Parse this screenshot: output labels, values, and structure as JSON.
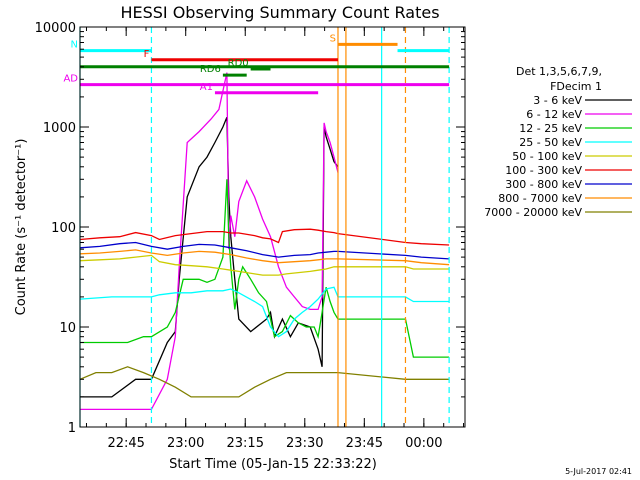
{
  "chart_data": {
    "type": "line",
    "title": "HESSI Observing Summary Count Rates",
    "xlabel": "Start Time (05-Jan-15 22:33:22)",
    "ylabel": "Count Rate (s⁻¹ detector⁻¹)",
    "ylim": [
      1,
      10000
    ],
    "yscale": "log",
    "xlim_minutes": [
      0,
      97
    ],
    "x_ticks": [
      "22:45",
      "23:00",
      "23:15",
      "23:30",
      "23:45",
      "00:00"
    ],
    "y_ticks": [
      "1",
      "10",
      "100",
      "1000",
      "10000"
    ],
    "grid": false,
    "legend_position": "right",
    "legend_header": [
      "Det 1,3,5,6,7,9,",
      "FDecim 1"
    ],
    "footer": "5-Jul-2017 02:41",
    "flags": [
      {
        "label": "N",
        "color": "#00ffff",
        "y": 5800,
        "segments": [
          [
            0,
            18
          ],
          [
            80,
            93
          ]
        ]
      },
      {
        "label": "S",
        "color": "#ff8c00",
        "y": 6700,
        "segments": [
          [
            65,
            80
          ]
        ]
      },
      {
        "label": "F",
        "color": "#ee0000",
        "y": 4700,
        "segments": [
          [
            18,
            65
          ]
        ]
      },
      {
        "label": "",
        "color": "#008000",
        "y": 4000,
        "segments": [
          [
            0,
            93
          ]
        ]
      },
      {
        "label": "RD0",
        "color": "#008000",
        "y": 3800,
        "segments": [
          [
            43,
            48
          ]
        ]
      },
      {
        "label": "RD6",
        "color": "#008000",
        "y": 3300,
        "segments": [
          [
            36,
            42
          ]
        ]
      },
      {
        "label": "AD",
        "color": "#ee00ee",
        "y": 2650,
        "segments": [
          [
            0,
            93
          ]
        ]
      },
      {
        "label": "A1",
        "color": "#ee00ee",
        "y": 2200,
        "segments": [
          [
            34,
            60
          ]
        ]
      }
    ],
    "vlines": [
      {
        "x": 0,
        "color": "#00ffff",
        "style": "solid"
      },
      {
        "x": 18,
        "color": "#00ffff",
        "style": "dashed"
      },
      {
        "x": 65,
        "color": "#ff8c00",
        "style": "solid"
      },
      {
        "x": 67,
        "color": "#ff8c00",
        "style": "solid"
      },
      {
        "x": 76,
        "color": "#00ffff",
        "style": "solid"
      },
      {
        "x": 82,
        "color": "#ff8c00",
        "style": "dashed"
      },
      {
        "x": 93,
        "color": "#00ffff",
        "style": "dashed"
      }
    ],
    "series": [
      {
        "name": "3 - 6 keV",
        "color": "#000000",
        "points": [
          [
            0,
            2
          ],
          [
            8,
            2
          ],
          [
            14,
            3
          ],
          [
            18,
            3
          ],
          [
            22,
            7
          ],
          [
            24,
            9
          ],
          [
            25,
            30
          ],
          [
            27,
            200
          ],
          [
            30,
            400
          ],
          [
            32,
            500
          ],
          [
            34,
            700
          ],
          [
            36,
            1000
          ],
          [
            37,
            1250
          ],
          [
            37.5,
            200
          ],
          [
            38,
            80
          ],
          [
            39,
            30
          ],
          [
            40,
            12
          ],
          [
            43,
            9
          ],
          [
            47,
            12
          ],
          [
            48,
            14
          ],
          [
            49,
            8
          ],
          [
            51,
            12
          ],
          [
            53,
            8
          ],
          [
            55,
            11
          ],
          [
            58,
            10
          ],
          [
            60,
            6
          ],
          [
            61,
            4
          ],
          [
            61.5,
            1000
          ],
          [
            62,
            800
          ],
          [
            63,
            600
          ],
          [
            64,
            450
          ],
          [
            65,
            400
          ]
        ]
      },
      {
        "name": "6 - 12 keV",
        "color": "#ee00ee",
        "points": [
          [
            0,
            1.5
          ],
          [
            10,
            1.5
          ],
          [
            16,
            1.5
          ],
          [
            18,
            1.5
          ],
          [
            22,
            3
          ],
          [
            24,
            8
          ],
          [
            25,
            40
          ],
          [
            27,
            700
          ],
          [
            30,
            900
          ],
          [
            33,
            1200
          ],
          [
            35,
            1500
          ],
          [
            37,
            3500
          ],
          [
            37.5,
            60
          ],
          [
            38,
            130
          ],
          [
            39,
            80
          ],
          [
            40,
            180
          ],
          [
            42,
            290
          ],
          [
            44,
            200
          ],
          [
            46,
            120
          ],
          [
            48,
            80
          ],
          [
            50,
            40
          ],
          [
            52,
            25
          ],
          [
            54,
            20
          ],
          [
            56,
            16
          ],
          [
            58,
            15
          ],
          [
            60,
            15
          ],
          [
            61,
            20
          ],
          [
            61.5,
            1100
          ],
          [
            62,
            900
          ],
          [
            63,
            700
          ],
          [
            64,
            500
          ],
          [
            65,
            350
          ]
        ]
      },
      {
        "name": "12 - 25 keV",
        "color": "#00cc00",
        "points": [
          [
            0,
            7
          ],
          [
            8,
            7
          ],
          [
            12,
            7
          ],
          [
            16,
            8
          ],
          [
            18,
            8
          ],
          [
            22,
            10
          ],
          [
            24,
            14
          ],
          [
            26,
            30
          ],
          [
            30,
            30
          ],
          [
            32,
            28
          ],
          [
            34,
            30
          ],
          [
            36,
            50
          ],
          [
            37,
            300
          ],
          [
            37.5,
            80
          ],
          [
            38,
            40
          ],
          [
            39,
            15
          ],
          [
            40,
            30
          ],
          [
            41,
            40
          ],
          [
            43,
            30
          ],
          [
            45,
            22
          ],
          [
            47,
            18
          ],
          [
            48,
            12
          ],
          [
            49,
            8
          ],
          [
            51,
            9
          ],
          [
            53,
            13
          ],
          [
            55,
            11
          ],
          [
            57,
            10
          ],
          [
            59,
            10
          ],
          [
            60,
            8
          ],
          [
            61,
            14
          ],
          [
            62,
            25
          ],
          [
            63,
            18
          ],
          [
            64,
            14
          ],
          [
            65,
            12
          ],
          [
            82,
            12
          ],
          [
            84,
            5
          ],
          [
            93,
            5
          ]
        ]
      },
      {
        "name": "25 - 50 keV",
        "color": "#00ffff",
        "points": [
          [
            0,
            19
          ],
          [
            8,
            20
          ],
          [
            14,
            20
          ],
          [
            18,
            20
          ],
          [
            20,
            21
          ],
          [
            24,
            22
          ],
          [
            28,
            22
          ],
          [
            32,
            23
          ],
          [
            36,
            23
          ],
          [
            38,
            24
          ],
          [
            40,
            22
          ],
          [
            44,
            18
          ],
          [
            46,
            16
          ],
          [
            48,
            10
          ],
          [
            50,
            8
          ],
          [
            52,
            9
          ],
          [
            54,
            12
          ],
          [
            56,
            14
          ],
          [
            58,
            16
          ],
          [
            60,
            19
          ],
          [
            62,
            24
          ],
          [
            64,
            25
          ],
          [
            65,
            20
          ],
          [
            82,
            20
          ],
          [
            84,
            18
          ],
          [
            93,
            18
          ]
        ]
      },
      {
        "name": "50 - 100 keV",
        "color": "#cccc00",
        "points": [
          [
            0,
            46
          ],
          [
            5,
            47
          ],
          [
            10,
            48
          ],
          [
            14,
            50
          ],
          [
            18,
            52
          ],
          [
            20,
            45
          ],
          [
            24,
            42
          ],
          [
            28,
            41
          ],
          [
            32,
            40
          ],
          [
            36,
            38
          ],
          [
            38,
            37
          ],
          [
            40,
            36
          ],
          [
            44,
            34
          ],
          [
            46,
            33
          ],
          [
            48,
            33
          ],
          [
            50,
            33
          ],
          [
            52,
            34
          ],
          [
            55,
            35
          ],
          [
            58,
            36
          ],
          [
            60,
            37
          ],
          [
            62,
            38
          ],
          [
            64,
            40
          ],
          [
            65,
            40
          ],
          [
            82,
            40
          ],
          [
            84,
            38
          ],
          [
            93,
            38
          ]
        ]
      },
      {
        "name": "100 - 300 keV",
        "color": "#ee0000",
        "points": [
          [
            0,
            75
          ],
          [
            5,
            78
          ],
          [
            10,
            80
          ],
          [
            14,
            88
          ],
          [
            18,
            82
          ],
          [
            20,
            75
          ],
          [
            24,
            82
          ],
          [
            28,
            86
          ],
          [
            32,
            90
          ],
          [
            36,
            90
          ],
          [
            38,
            87
          ],
          [
            40,
            87
          ],
          [
            44,
            82
          ],
          [
            46,
            78
          ],
          [
            48,
            76
          ],
          [
            50,
            70
          ],
          [
            51,
            90
          ],
          [
            54,
            94
          ],
          [
            58,
            95
          ],
          [
            60,
            93
          ],
          [
            62,
            90
          ],
          [
            64,
            88
          ],
          [
            65,
            86
          ],
          [
            82,
            70
          ],
          [
            86,
            68
          ],
          [
            93,
            66
          ]
        ]
      },
      {
        "name": "300 - 800 keV",
        "color": "#0000cc",
        "points": [
          [
            0,
            62
          ],
          [
            5,
            64
          ],
          [
            10,
            68
          ],
          [
            14,
            70
          ],
          [
            18,
            64
          ],
          [
            22,
            60
          ],
          [
            26,
            64
          ],
          [
            30,
            67
          ],
          [
            34,
            66
          ],
          [
            38,
            62
          ],
          [
            42,
            58
          ],
          [
            46,
            53
          ],
          [
            50,
            50
          ],
          [
            54,
            52
          ],
          [
            58,
            53
          ],
          [
            60,
            55
          ],
          [
            62,
            56
          ],
          [
            64,
            57
          ],
          [
            65,
            57
          ],
          [
            82,
            52
          ],
          [
            86,
            50
          ],
          [
            93,
            48
          ]
        ]
      },
      {
        "name": "800 - 7000 keV",
        "color": "#ff8c00",
        "points": [
          [
            0,
            54
          ],
          [
            5,
            55
          ],
          [
            10,
            57
          ],
          [
            14,
            59
          ],
          [
            18,
            55
          ],
          [
            22,
            52
          ],
          [
            26,
            55
          ],
          [
            30,
            57
          ],
          [
            34,
            56
          ],
          [
            38,
            53
          ],
          [
            42,
            49
          ],
          [
            46,
            46
          ],
          [
            50,
            44
          ],
          [
            54,
            45
          ],
          [
            58,
            46
          ],
          [
            60,
            47
          ],
          [
            62,
            48
          ],
          [
            64,
            48
          ],
          [
            65,
            48
          ],
          [
            82,
            46
          ],
          [
            86,
            44
          ],
          [
            93,
            42
          ]
        ]
      },
      {
        "name": "7000 - 20000 keV",
        "color": "#808000",
        "points": [
          [
            0,
            3
          ],
          [
            4,
            3.5
          ],
          [
            8,
            3.5
          ],
          [
            12,
            4
          ],
          [
            16,
            3.5
          ],
          [
            20,
            3
          ],
          [
            24,
            2.5
          ],
          [
            28,
            2
          ],
          [
            32,
            2
          ],
          [
            36,
            2
          ],
          [
            40,
            2
          ],
          [
            44,
            2.5
          ],
          [
            48,
            3
          ],
          [
            52,
            3.5
          ],
          [
            56,
            3.5
          ],
          [
            60,
            3.5
          ],
          [
            64,
            3.5
          ],
          [
            65,
            3.5
          ],
          [
            82,
            3
          ],
          [
            86,
            3
          ],
          [
            93,
            3
          ]
        ]
      }
    ]
  }
}
